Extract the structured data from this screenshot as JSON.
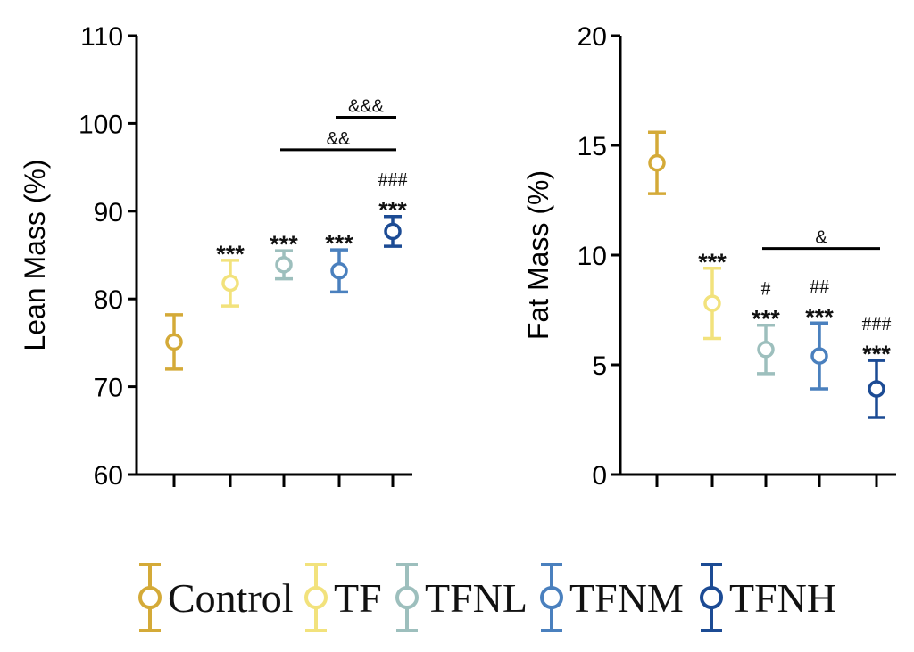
{
  "chart_data": [
    {
      "type": "scatter",
      "subtype": "mean-with-error-bars",
      "ylabel": "Lean Mass (%)",
      "xlabel": "",
      "ylim": [
        60,
        110
      ],
      "yticks": [
        "60",
        "70",
        "80",
        "90",
        "100",
        "110"
      ],
      "categories": [
        "Control",
        "TF",
        "TFNL",
        "TFNM",
        "TFNH"
      ],
      "series": [
        {
          "name": "Control",
          "mean": 75.1,
          "err": 3.1,
          "color": "#D4AA38"
        },
        {
          "name": "TF",
          "mean": 81.8,
          "err": 2.6,
          "color": "#F2E27C"
        },
        {
          "name": "TFNL",
          "mean": 83.9,
          "err": 1.6,
          "color": "#9DBFBD"
        },
        {
          "name": "TFNM",
          "mean": 83.2,
          "err": 2.4,
          "color": "#4A80BE"
        },
        {
          "name": "TFNH",
          "mean": 87.7,
          "err": 1.7,
          "color": "#1C4B94"
        }
      ],
      "annotations": [
        {
          "text": "***",
          "group": "TF"
        },
        {
          "text": "***",
          "group": "TFNL"
        },
        {
          "text": "***",
          "group": "TFNM"
        },
        {
          "text": "###",
          "group": "TFNH"
        },
        {
          "text": "***",
          "group": "TFNH"
        }
      ],
      "brackets": [
        {
          "text": "&&&",
          "from": "TFNM",
          "to": "TFNH",
          "y": 100.7
        },
        {
          "text": "&&",
          "from": "TFNL",
          "to": "TFNH",
          "y": 97
        }
      ]
    },
    {
      "type": "scatter",
      "subtype": "mean-with-error-bars",
      "ylabel": "Fat Mass (%)",
      "xlabel": "",
      "ylim": [
        0,
        20
      ],
      "yticks": [
        "0",
        "5",
        "10",
        "15",
        "20"
      ],
      "categories": [
        "Control",
        "TF",
        "TFNL",
        "TFNM",
        "TFNH"
      ],
      "series": [
        {
          "name": "Control",
          "mean": 14.2,
          "err": 1.4,
          "color": "#D4AA38"
        },
        {
          "name": "TF",
          "mean": 7.8,
          "err": 1.6,
          "color": "#F2E27C"
        },
        {
          "name": "TFNL",
          "mean": 5.7,
          "err": 1.1,
          "color": "#9DBFBD"
        },
        {
          "name": "TFNM",
          "mean": 5.4,
          "err": 1.5,
          "color": "#4A80BE"
        },
        {
          "name": "TFNH",
          "mean": 3.9,
          "err": 1.3,
          "color": "#1C4B94"
        }
      ],
      "annotations": [
        {
          "text": "***",
          "group": "TF"
        },
        {
          "text": "#",
          "group": "TFNL"
        },
        {
          "text": "***",
          "group": "TFNL"
        },
        {
          "text": "##",
          "group": "TFNM"
        },
        {
          "text": "***",
          "group": "TFNM"
        },
        {
          "text": "###",
          "group": "TFNH"
        },
        {
          "text": "***",
          "group": "TFNH"
        }
      ],
      "brackets": [
        {
          "text": "&",
          "from": "TFNL",
          "to": "TFNH",
          "y": 10.3
        }
      ]
    }
  ],
  "legend": {
    "items": [
      {
        "label": "Control",
        "color": "#D4AA38"
      },
      {
        "label": "TF",
        "color": "#F2E27C"
      },
      {
        "label": "TFNL",
        "color": "#9DBFBD"
      },
      {
        "label": "TFNM",
        "color": "#4A80BE"
      },
      {
        "label": "TFNH",
        "color": "#1C4B94"
      }
    ]
  }
}
